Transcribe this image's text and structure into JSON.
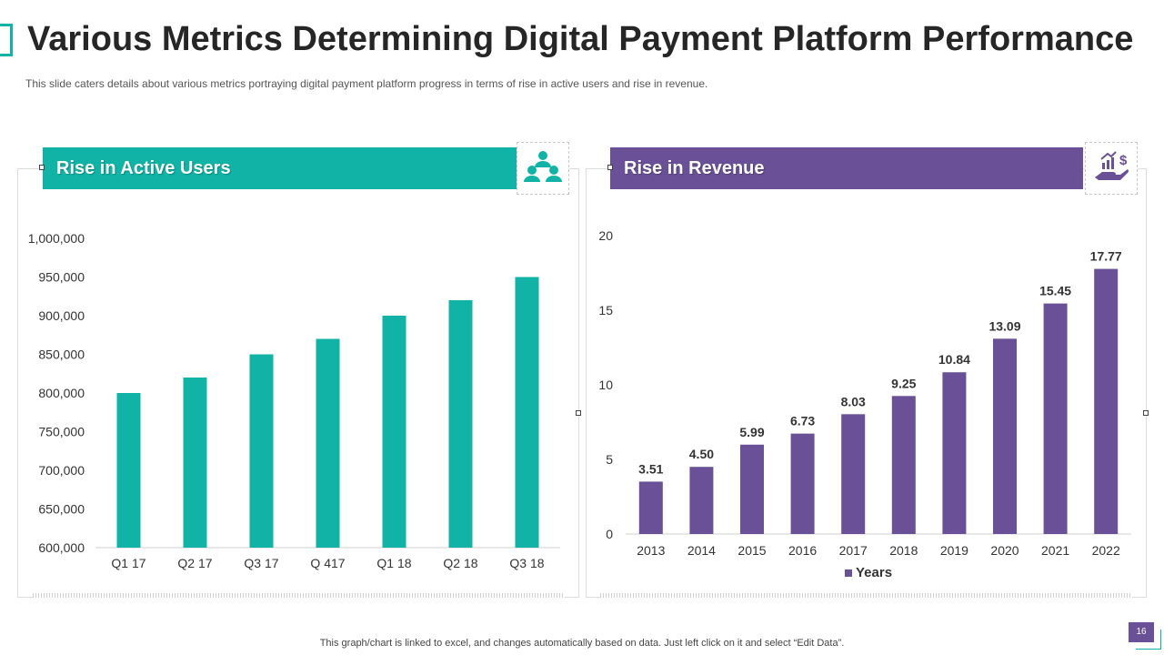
{
  "slide": {
    "title": "Various Metrics Determining Digital Payment Platform Performance",
    "subtitle": "This slide caters details about various  metrics portraying digital payment platform  progress in terms of rise in active users and rise in revenue.",
    "footer_note": "This graph/chart is linked to excel,  and changes automatically based on data. Just left click on it and select “Edit Data”.",
    "page_number": "16"
  },
  "panels": {
    "left": {
      "header": "Rise in Active Users",
      "icon": "users-group-icon"
    },
    "right": {
      "header": "Rise in Revenue",
      "icon": "revenue-growth-icon"
    }
  },
  "colors": {
    "teal": "#10b3a6",
    "purple": "#6a5096"
  },
  "chart_data": [
    {
      "type": "bar",
      "title": "Rise in Active Users",
      "categories": [
        "Q1 17",
        "Q2 17",
        "Q3 17",
        "Q 417",
        "Q1 18",
        "Q2 18",
        "Q3 18"
      ],
      "values": [
        800000,
        820000,
        850000,
        870000,
        900000,
        920000,
        950000
      ],
      "ylim": [
        600000,
        1000000
      ],
      "yticks": [
        600000,
        650000,
        700000,
        750000,
        800000,
        850000,
        900000,
        950000,
        1000000
      ],
      "ytick_labels": [
        "600,000",
        "650,000",
        "700,000",
        "750,000",
        "800,000",
        "850,000",
        "900,000",
        "950,000",
        "1,000,000"
      ],
      "xlabel": "",
      "ylabel": "",
      "grid": false,
      "data_labels": false,
      "color": "#10b3a6"
    },
    {
      "type": "bar",
      "title": "Rise in Revenue",
      "categories": [
        "2013",
        "2014",
        "2015",
        "2016",
        "2017",
        "2018",
        "2019",
        "2020",
        "2021",
        "2022"
      ],
      "values": [
        3.51,
        4.5,
        5.99,
        6.73,
        8.03,
        9.25,
        10.84,
        13.09,
        15.45,
        17.77
      ],
      "value_labels": [
        "3.51",
        "4.50",
        "5.99",
        "6.73",
        "8.03",
        "9.25",
        "10.84",
        "13.09",
        "15.45",
        "17.77"
      ],
      "ylim": [
        0,
        20
      ],
      "yticks": [
        0,
        5,
        10,
        15,
        20
      ],
      "ytick_labels": [
        "0",
        "5",
        "10",
        "15",
        "20"
      ],
      "legend": [
        "Years"
      ],
      "legend_position": "bottom",
      "xlabel": "",
      "ylabel": "",
      "grid": false,
      "data_labels": true,
      "color": "#6a5096"
    }
  ]
}
